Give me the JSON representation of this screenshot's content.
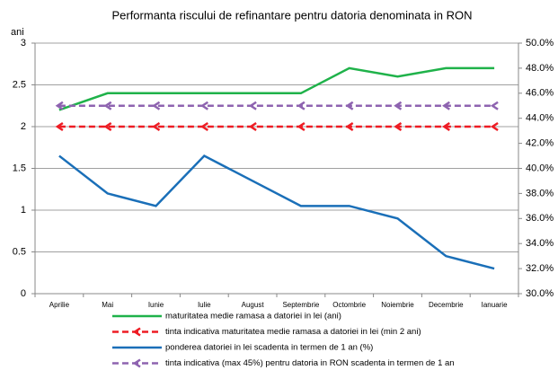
{
  "chart_data": {
    "type": "line",
    "title": "Performanta riscului de refinantare pentru datoria denominata in RON",
    "y_label": "ani",
    "categories": [
      "Aprilie",
      "Mai",
      "Iunie",
      "Iulie",
      "August",
      "Septembrie",
      "Octombrie",
      "Noiembrie",
      "Decembrie",
      "Ianuarie"
    ],
    "series": [
      {
        "name": "maturitatea medie ramasa a datoriei in lei (ani)",
        "color": "#1fb24a",
        "dashed": false,
        "values": [
          2.2,
          2.4,
          2.4,
          2.4,
          2.4,
          2.4,
          2.7,
          2.6,
          2.7,
          2.7
        ]
      },
      {
        "name": "tinta indicativa maturitatea medie ramasa a datoriei in lei  (min 2 ani)",
        "color": "#ee1c24",
        "dashed": true,
        "values": [
          2,
          2,
          2,
          2,
          2,
          2,
          2,
          2,
          2,
          2
        ]
      },
      {
        "name": "ponderea datoriei in lei scadenta in termen de 1 an (%)",
        "color": "#1a6fb8",
        "dashed": false,
        "axis": "y2",
        "values": [
          41,
          38,
          37,
          41,
          39,
          37,
          37,
          36,
          33,
          32
        ]
      },
      {
        "name": "tinta indicativa (max 45%) pentru datoria in RON scadenta in termen de  1 an",
        "color": "#8e63b0",
        "dashed": true,
        "axis": "y2",
        "values": [
          45,
          45,
          45,
          45,
          45,
          45,
          45,
          45,
          45,
          45
        ]
      }
    ],
    "ylim": [
      0,
      3
    ],
    "yticks": [
      0,
      0.5,
      1,
      1.5,
      2,
      2.5,
      3
    ],
    "y2lim": [
      30,
      50
    ],
    "y2ticks": [
      {
        "value": 30,
        "label": "30.0%"
      },
      {
        "value": 32,
        "label": "32.0%"
      },
      {
        "value": 34,
        "label": "34.0%"
      },
      {
        "value": 36,
        "label": "36.0%"
      },
      {
        "value": 38,
        "label": "38.0%"
      },
      {
        "value": 40,
        "label": "40.0%"
      },
      {
        "value": 42,
        "label": "42.0%"
      },
      {
        "value": 44,
        "label": "44.0%"
      },
      {
        "value": 46,
        "label": "46.0%"
      },
      {
        "value": 48,
        "label": "48.0%"
      },
      {
        "value": 50,
        "label": "50.0%"
      }
    ],
    "grid": true
  }
}
